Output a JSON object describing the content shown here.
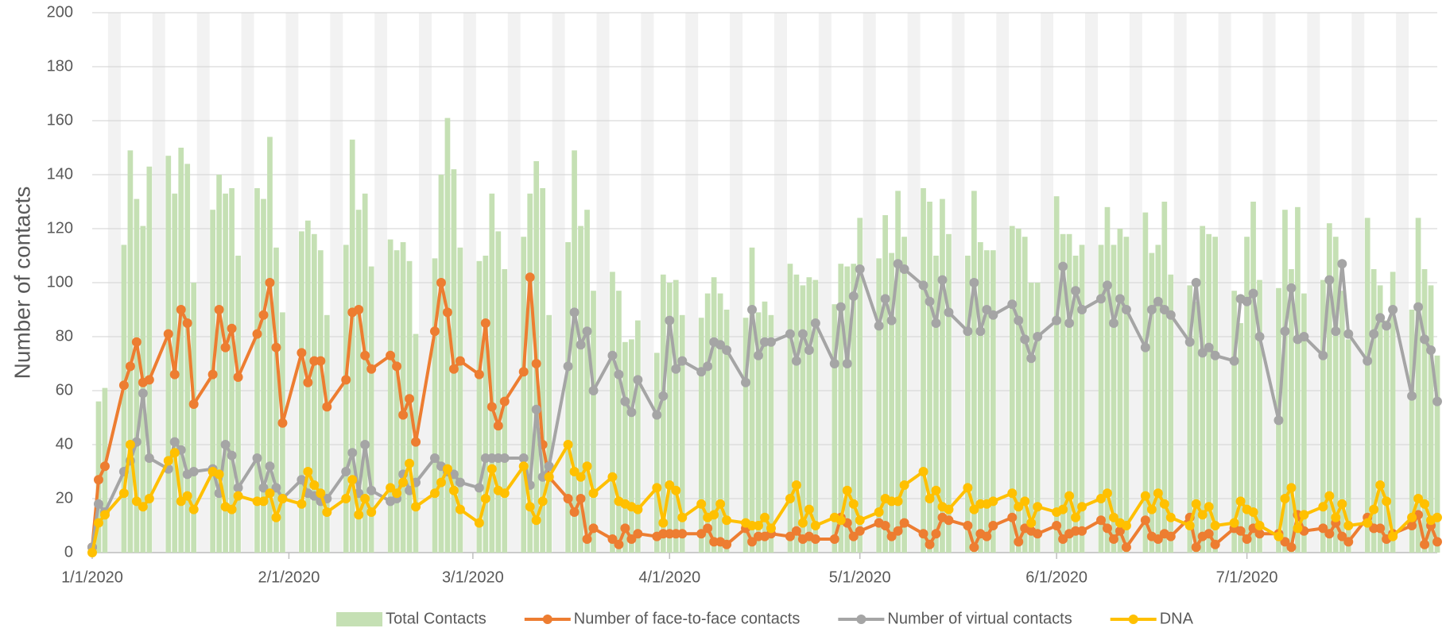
{
  "chart_data": {
    "type": "combo",
    "y_label": "Number of contacts",
    "x": [
      "1/1/2020",
      "1/2/2020",
      "1/3/2020",
      "1/6/2020",
      "1/7/2020",
      "1/8/2020",
      "1/9/2020",
      "1/10/2020",
      "1/13/2020",
      "1/14/2020",
      "1/15/2020",
      "1/16/2020",
      "1/17/2020",
      "1/20/2020",
      "1/21/2020",
      "1/22/2020",
      "1/23/2020",
      "1/24/2020",
      "1/27/2020",
      "1/28/2020",
      "1/29/2020",
      "1/30/2020",
      "1/31/2020",
      "2/3/2020",
      "2/4/2020",
      "2/5/2020",
      "2/6/2020",
      "2/7/2020",
      "2/10/2020",
      "2/11/2020",
      "2/12/2020",
      "2/13/2020",
      "2/14/2020",
      "2/17/2020",
      "2/18/2020",
      "2/19/2020",
      "2/20/2020",
      "2/21/2020",
      "2/24/2020",
      "2/25/2020",
      "2/26/2020",
      "2/27/2020",
      "2/28/2020",
      "3/2/2020",
      "3/3/2020",
      "3/4/2020",
      "3/5/2020",
      "3/6/2020",
      "3/9/2020",
      "3/10/2020",
      "3/11/2020",
      "3/12/2020",
      "3/13/2020",
      "3/16/2020",
      "3/17/2020",
      "3/18/2020",
      "3/19/2020",
      "3/20/2020",
      "3/23/2020",
      "3/24/2020",
      "3/25/2020",
      "3/26/2020",
      "3/27/2020",
      "3/30/2020",
      "3/31/2020",
      "4/1/2020",
      "4/2/2020",
      "4/3/2020",
      "4/6/2020",
      "4/7/2020",
      "4/8/2020",
      "4/9/2020",
      "4/10/2020",
      "4/13/2020",
      "4/14/2020",
      "4/15/2020",
      "4/16/2020",
      "4/17/2020",
      "4/20/2020",
      "4/21/2020",
      "4/22/2020",
      "4/23/2020",
      "4/24/2020",
      "4/27/2020",
      "4/28/2020",
      "4/29/2020",
      "4/30/2020",
      "5/1/2020",
      "5/4/2020",
      "5/5/2020",
      "5/6/2020",
      "5/7/2020",
      "5/8/2020",
      "5/11/2020",
      "5/12/2020",
      "5/13/2020",
      "5/14/2020",
      "5/15/2020",
      "5/18/2020",
      "5/19/2020",
      "5/20/2020",
      "5/21/2020",
      "5/22/2020",
      "5/25/2020",
      "5/26/2020",
      "5/27/2020",
      "5/28/2020",
      "5/29/2020",
      "6/1/2020",
      "6/2/2020",
      "6/3/2020",
      "6/4/2020",
      "6/5/2020",
      "6/8/2020",
      "6/9/2020",
      "6/10/2020",
      "6/11/2020",
      "6/12/2020",
      "6/15/2020",
      "6/16/2020",
      "6/17/2020",
      "6/18/2020",
      "6/19/2020",
      "6/22/2020",
      "6/23/2020",
      "6/24/2020",
      "6/25/2020",
      "6/26/2020",
      "6/29/2020",
      "6/30/2020",
      "7/1/2020",
      "7/2/2020",
      "7/3/2020",
      "7/6/2020",
      "7/7/2020",
      "7/8/2020",
      "7/9/2020",
      "7/10/2020",
      "7/13/2020",
      "7/14/2020",
      "7/15/2020",
      "7/16/2020",
      "7/17/2020",
      "7/20/2020",
      "7/21/2020",
      "7/22/2020",
      "7/23/2020",
      "7/24/2020",
      "7/27/2020",
      "7/28/2020",
      "7/29/2020",
      "7/30/2020",
      "7/31/2020"
    ],
    "series": [
      {
        "name": "Total Contacts",
        "type": "bar",
        "color": "#c5e0b4",
        "values": [
          0,
          56,
          61,
          114,
          149,
          131,
          121,
          143,
          147,
          133,
          150,
          144,
          100,
          127,
          140,
          133,
          135,
          110,
          135,
          131,
          154,
          113,
          89,
          119,
          123,
          118,
          112,
          88,
          114,
          153,
          127,
          133,
          106,
          116,
          112,
          115,
          108,
          81,
          109,
          140,
          161,
          142,
          113,
          108,
          110,
          133,
          119,
          105,
          117,
          133,
          145,
          135,
          88,
          115,
          149,
          121,
          127,
          97,
          104,
          97,
          78,
          79,
          86,
          74,
          103,
          100,
          101,
          88,
          87,
          96,
          102,
          96,
          90,
          87,
          113,
          89,
          93,
          88,
          107,
          103,
          99,
          102,
          101,
          92,
          107,
          106,
          107,
          124,
          109,
          125,
          111,
          134,
          117,
          135,
          130,
          110,
          131,
          118,
          110,
          134,
          115,
          112,
          112,
          121,
          120,
          117,
          100,
          100,
          132,
          118,
          118,
          110,
          114,
          114,
          128,
          114,
          120,
          117,
          126,
          111,
          114,
          130,
          103,
          99,
          93,
          121,
          118,
          117,
          97,
          85,
          117,
          130,
          101,
          98,
          127,
          105,
          128,
          96,
          101,
          122,
          117,
          97,
          79,
          124,
          105,
          99,
          86,
          104,
          90,
          124,
          105,
          99,
          73
        ]
      },
      {
        "name": "Number of face-to-face contacts",
        "type": "line",
        "color": "#ed7d31",
        "values": [
          2,
          27,
          32,
          62,
          69,
          78,
          63,
          64,
          81,
          66,
          90,
          85,
          55,
          66,
          90,
          76,
          83,
          65,
          81,
          88,
          100,
          76,
          48,
          74,
          63,
          71,
          71,
          54,
          64,
          89,
          90,
          73,
          68,
          73,
          69,
          51,
          57,
          41,
          82,
          100,
          89,
          68,
          71,
          66,
          85,
          54,
          47,
          56,
          67,
          102,
          70,
          40,
          28,
          20,
          15,
          20,
          5,
          9,
          5,
          3,
          9,
          5,
          7,
          6,
          7,
          7,
          7,
          7,
          7,
          9,
          4,
          4,
          3,
          9,
          4,
          6,
          6,
          7,
          6,
          8,
          5,
          6,
          5,
          5,
          13,
          11,
          6,
          8,
          11,
          10,
          6,
          8,
          11,
          7,
          3,
          7,
          13,
          12,
          10,
          2,
          7,
          6,
          10,
          13,
          4,
          9,
          8,
          7,
          10,
          5,
          7,
          8,
          8,
          12,
          9,
          5,
          8,
          2,
          12,
          6,
          5,
          7,
          6,
          13,
          2,
          6,
          7,
          3,
          9,
          8,
          5,
          9,
          7,
          7,
          4,
          2,
          14,
          8,
          9,
          7,
          11,
          6,
          4,
          13,
          9,
          9,
          5,
          7,
          10,
          14,
          3,
          10,
          4
        ]
      },
      {
        "name": "Number of virtual contacts",
        "type": "line",
        "color": "#a5a5a5",
        "values": [
          2,
          18,
          15,
          30,
          34,
          41,
          59,
          35,
          31,
          41,
          38,
          29,
          30,
          31,
          22,
          40,
          36,
          24,
          35,
          24,
          32,
          24,
          20,
          27,
          22,
          21,
          19,
          20,
          30,
          37,
          22,
          40,
          23,
          19,
          20,
          29,
          23,
          26,
          35,
          32,
          30,
          29,
          26,
          24,
          35,
          35,
          35,
          35,
          35,
          25,
          53,
          28,
          32,
          69,
          89,
          77,
          82,
          60,
          73,
          66,
          56,
          52,
          64,
          51,
          58,
          86,
          68,
          71,
          67,
          69,
          78,
          77,
          75,
          63,
          90,
          73,
          78,
          78,
          81,
          71,
          81,
          75,
          85,
          70,
          91,
          70,
          95,
          105,
          84,
          94,
          86,
          107,
          105,
          99,
          93,
          85,
          101,
          89,
          82,
          100,
          82,
          90,
          88,
          92,
          86,
          79,
          72,
          80,
          86,
          106,
          85,
          97,
          90,
          94,
          99,
          85,
          94,
          90,
          76,
          90,
          93,
          90,
          88,
          78,
          100,
          74,
          76,
          73,
          71,
          94,
          93,
          96,
          80,
          49,
          82,
          98,
          79,
          80,
          73,
          101,
          82,
          107,
          81,
          71,
          81,
          87,
          84,
          90,
          58,
          91,
          79,
          75,
          56
        ]
      },
      {
        "name": "DNA",
        "type": "line",
        "color": "#ffc000",
        "values": [
          0,
          11,
          14,
          22,
          40,
          19,
          17,
          20,
          34,
          37,
          19,
          21,
          16,
          30,
          29,
          17,
          16,
          21,
          19,
          19,
          22,
          13,
          20,
          18,
          30,
          25,
          22,
          15,
          20,
          27,
          14,
          20,
          15,
          24,
          22,
          26,
          33,
          17,
          22,
          26,
          31,
          23,
          16,
          11,
          20,
          31,
          23,
          22,
          32,
          17,
          12,
          19,
          28,
          40,
          30,
          28,
          32,
          22,
          28,
          19,
          18,
          17,
          16,
          24,
          11,
          25,
          23,
          13,
          18,
          13,
          14,
          18,
          12,
          11,
          10,
          10,
          13,
          9,
          20,
          25,
          11,
          16,
          10,
          13,
          12,
          23,
          18,
          12,
          15,
          20,
          19,
          19,
          25,
          30,
          20,
          23,
          17,
          16,
          24,
          16,
          18,
          18,
          19,
          22,
          17,
          19,
          11,
          17,
          15,
          16,
          21,
          13,
          17,
          20,
          22,
          13,
          11,
          10,
          21,
          16,
          22,
          18,
          13,
          10,
          18,
          14,
          17,
          10,
          11,
          19,
          16,
          15,
          10,
          6,
          20,
          24,
          9,
          14,
          17,
          21,
          13,
          18,
          10,
          11,
          16,
          25,
          19,
          6,
          13,
          20,
          18,
          12,
          13
        ]
      }
    ],
    "xlim": [
      "1/1/2020",
      "7/31/2020"
    ],
    "xticks": [
      "1/1/2020",
      "2/1/2020",
      "3/1/2020",
      "4/1/2020",
      "5/1/2020",
      "6/1/2020",
      "7/1/2020"
    ],
    "ylim": [
      0,
      200
    ],
    "yticks": [
      0,
      20,
      40,
      60,
      80,
      100,
      120,
      140,
      160,
      180,
      200
    ],
    "grid": true,
    "legend": "bottom"
  }
}
